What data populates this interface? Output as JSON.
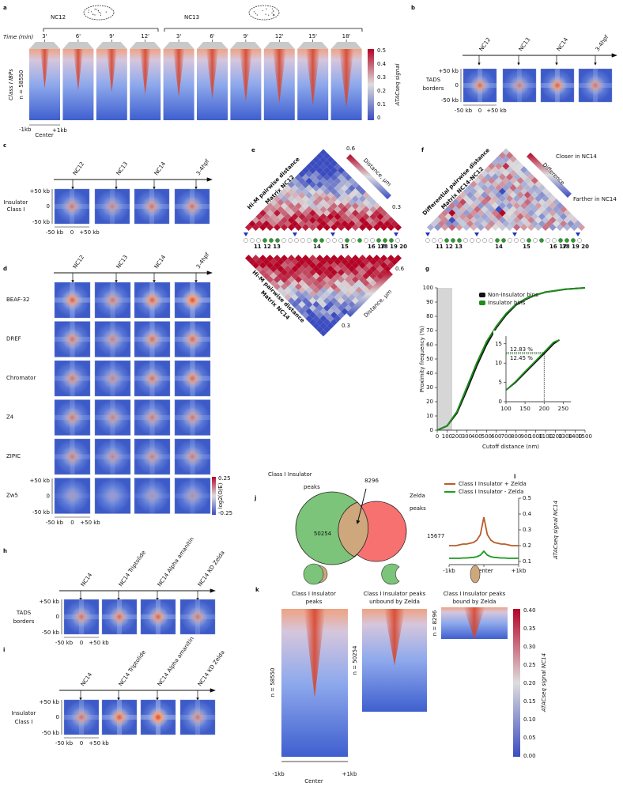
{
  "panels": {
    "a": {
      "letter": "a",
      "stage_labels": [
        "NC12",
        "NC13"
      ],
      "time_label": "Time (min)",
      "times": [
        "3'",
        "6'",
        "9'",
        "12'",
        "3'",
        "6'",
        "9'",
        "12'",
        "15'",
        "18'"
      ],
      "y_label": "Class I IBPs",
      "n_label": "n = 58550",
      "colorbar_ticks": [
        "0.5",
        "0.4",
        "0.3",
        "0.2",
        "0.1",
        "0"
      ],
      "colorbar_label": "ATACseq signal",
      "x_labels": [
        "-1kb",
        "Center",
        "+1kb"
      ]
    },
    "b": {
      "letter": "b",
      "stages": [
        "NC12",
        "NC13",
        "NC14",
        "3-4hpf"
      ],
      "row_label": [
        "TADS",
        "borders"
      ],
      "y_labels": [
        "+50 kb",
        "0",
        "-50 kb"
      ],
      "x_labels": [
        "-50 kb",
        "0",
        "+50 kb"
      ]
    },
    "c": {
      "letter": "c",
      "stages": [
        "NC12",
        "NC13",
        "NC14",
        "3-4hpf"
      ],
      "row_label": [
        "Insulator",
        "Class I"
      ],
      "y_labels": [
        "+50 kb",
        "0",
        "-50 kb"
      ],
      "x_labels": [
        "-50 kb",
        "0",
        "+50 kb"
      ]
    },
    "d": {
      "letter": "d",
      "stages": [
        "NC12",
        "NC13",
        "NC14",
        "3-4hpf"
      ],
      "rows": [
        "BEAF-32",
        "DREF",
        "Chromator",
        "Z4",
        "ZIPIC",
        "Zw5"
      ],
      "colorbar_ticks": [
        "0.25",
        "-0.25"
      ],
      "colorbar_label": "log2(O/E)",
      "y_labels": [
        "+50 kb",
        "0",
        "-50 kb"
      ],
      "x_labels": [
        "-50 kb",
        "0",
        "+50 kb"
      ]
    },
    "e": {
      "letter": "e",
      "top_title": [
        "Hi-M pairwise distance",
        "Matrix NC12"
      ],
      "bottom_title": [
        "Hi-M pairwise distance",
        "Matrix NC14"
      ],
      "colorbar_ticks": [
        "0.6",
        "0.3"
      ],
      "colorbar_label": "Distance, µm",
      "barcode_labels": [
        "11 12 13",
        "14",
        "15",
        "16 17",
        "18 19 20"
      ]
    },
    "f": {
      "letter": "f",
      "title": [
        "Differential pairwise distance",
        "Matrix NC14-NC12"
      ],
      "legend": [
        "Closer in NC14",
        "Difference",
        "Farther in NC14"
      ],
      "barcode_labels": [
        "11 12 13",
        "14",
        "15",
        "16 17",
        "18 19 20"
      ]
    },
    "g": {
      "letter": "g"
    },
    "h": {
      "letter": "h",
      "conditions": [
        "NC14",
        "NC14 Triptolide",
        "NC14 Alpha amanitin",
        "NC14 KD Zelda"
      ],
      "row_label": [
        "TADS",
        "borders"
      ],
      "y_labels": [
        "+50 kb",
        "0",
        "-50 kb"
      ],
      "x_labels": [
        "-50 kb",
        "0",
        "+50 kb"
      ]
    },
    "i": {
      "letter": "i",
      "conditions": [
        "NC14",
        "NC14 Triptolide",
        "NC14 Alpha amanitin",
        "NC14 KD Zelda"
      ],
      "row_label": [
        "Insulator",
        "Class I"
      ],
      "y_labels": [
        "+50 kb",
        "0",
        "-50 kb"
      ],
      "x_labels": [
        "-50 kb",
        "0",
        "+50 kb"
      ]
    },
    "j": {
      "letter": "j",
      "set_a": [
        "Class I Insulator",
        "peaks"
      ],
      "set_b": [
        "Zelda",
        "peaks"
      ],
      "only_a": "50254",
      "overlap": "8296",
      "only_b": "15677"
    },
    "k": {
      "letter": "k",
      "titles": [
        [
          "Class I Insulator",
          "peaks"
        ],
        [
          "Class I Insulator peaks",
          "unbound by Zelda"
        ],
        [
          "Class I Insulator peaks",
          "bound by Zelda"
        ]
      ],
      "n_labels": [
        "n = 58550",
        "n = 50254",
        "n = 8296"
      ],
      "colorbar_ticks": [
        "0.40",
        "0.35",
        "0.30",
        "0.25",
        "0.20",
        "0.15",
        "0.10",
        "0.05",
        "0.00"
      ],
      "colorbar_label": "ATACseq signal NC14",
      "x_labels": [
        "-1kb",
        "Center",
        "+1kb"
      ]
    },
    "l": {
      "letter": "l"
    }
  },
  "chart_data": [
    {
      "type": "line",
      "x_label": "Cutoff distance (nm)",
      "y_label": "Proximity frequency (%)",
      "x": [
        0,
        100,
        200,
        300,
        400,
        500,
        600,
        700,
        800,
        900,
        1000,
        1100,
        1200,
        1300,
        1400,
        1500
      ],
      "series": [
        {
          "name": "Non-insulator bins",
          "color": "#111111",
          "values": [
            0,
            3,
            12,
            28,
            45,
            60,
            72,
            81,
            88,
            92,
            95,
            97,
            98,
            99,
            99.5,
            100
          ]
        },
        {
          "name": "Insulator bins",
          "color": "#1e8c1e",
          "values": [
            0,
            3,
            13,
            30,
            47,
            62,
            73,
            82,
            88.5,
            92.5,
            95,
            97,
            98,
            99,
            99.5,
            100
          ]
        }
      ],
      "xlim": [
        0,
        1500
      ],
      "ylim": [
        0,
        100
      ],
      "xticks": [
        0,
        100,
        200,
        300,
        400,
        500,
        600,
        700,
        800,
        900,
        1000,
        1100,
        1200,
        1300,
        1400,
        1500
      ],
      "yticks": [
        0,
        10,
        20,
        30,
        40,
        50,
        60,
        70,
        80,
        90,
        100
      ]
    },
    {
      "type": "line",
      "annotations": [
        "12.83 %",
        "12.45 %"
      ],
      "x": [
        100,
        125,
        150,
        175,
        200,
        225,
        240
      ],
      "series": [
        {
          "name": "Non-insulator bins",
          "color": "#111111",
          "values": [
            3,
            5,
            7.5,
            10,
            12.45,
            15,
            16
          ]
        },
        {
          "name": "Insulator bins",
          "color": "#1e8c1e",
          "values": [
            3,
            5.2,
            7.8,
            10.3,
            12.83,
            15.4,
            16
          ]
        }
      ],
      "xlim": [
        100,
        270
      ],
      "ylim": [
        0,
        17
      ],
      "xticks": [
        100,
        150,
        200,
        250
      ],
      "yticks": [
        0,
        5,
        10,
        15
      ]
    },
    {
      "type": "line",
      "y_label": "ATACseq signal NC14",
      "x": [
        -1000,
        -900,
        -800,
        -700,
        -600,
        -500,
        -400,
        -300,
        -200,
        -100,
        0,
        100,
        200,
        300,
        400,
        500,
        600,
        700,
        800,
        900,
        1000
      ],
      "series": [
        {
          "name": "Class I Insulator + Zelda",
          "color": "#b85c2a",
          "values": [
            0.2,
            0.2,
            0.2,
            0.205,
            0.21,
            0.21,
            0.215,
            0.22,
            0.235,
            0.27,
            0.38,
            0.27,
            0.235,
            0.22,
            0.215,
            0.21,
            0.21,
            0.205,
            0.2,
            0.2,
            0.2
          ]
        },
        {
          "name": "Class I Insulator - Zelda",
          "color": "#1e9c1e",
          "values": [
            0.12,
            0.12,
            0.12,
            0.12,
            0.122,
            0.122,
            0.124,
            0.126,
            0.13,
            0.14,
            0.165,
            0.14,
            0.13,
            0.126,
            0.124,
            0.122,
            0.122,
            0.12,
            0.12,
            0.12,
            0.12
          ]
        }
      ],
      "xlim": [
        -1000,
        1000
      ],
      "ylim": [
        0.08,
        0.5
      ],
      "xticks": [
        {
          "value": -1000,
          "label": "-1kb"
        },
        {
          "value": 0,
          "label": "Center"
        },
        {
          "value": 1000,
          "label": "+1kb"
        }
      ],
      "yticks": [
        0.1,
        0.2,
        0.3,
        0.4,
        0.5
      ]
    }
  ]
}
